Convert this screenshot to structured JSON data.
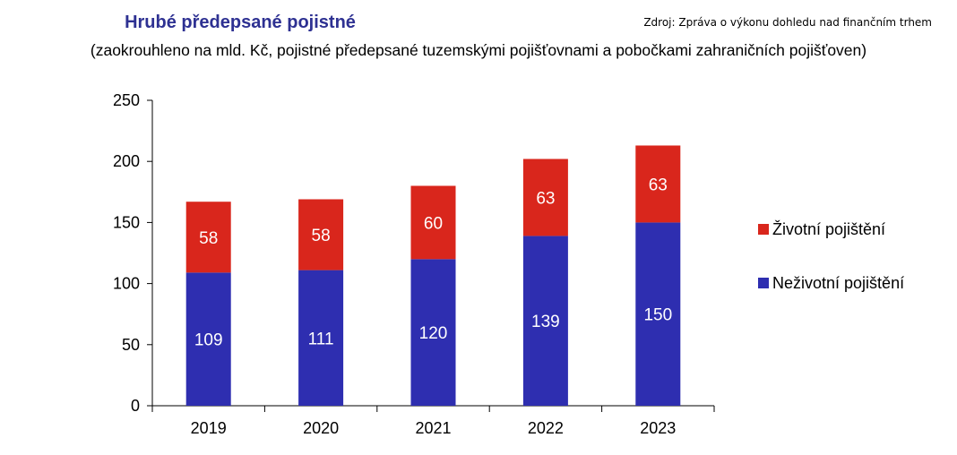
{
  "header": {
    "title": "Hrubé předepsané pojistné",
    "subtitle": "(zaokrouhleno na mld. Kč, pojistné předepsané tuzemskými pojišťovnami a pobočkami zahraničních pojišťoven)",
    "source": "Zdroj: Zpráva o výkonu dohledu nad finančním trhem"
  },
  "chart_data": {
    "type": "bar",
    "stacked": true,
    "categories": [
      "2019",
      "2020",
      "2021",
      "2022",
      "2023"
    ],
    "series": [
      {
        "name": "Neživotní pojištění",
        "values": [
          109,
          111,
          120,
          139,
          150
        ],
        "color": "#2e2eb0"
      },
      {
        "name": "Životní pojištění",
        "values": [
          58,
          58,
          60,
          63,
          63
        ],
        "color": "#d9261c"
      }
    ],
    "yticks": [
      0,
      50,
      100,
      150,
      200,
      250
    ],
    "ylim": [
      0,
      250
    ],
    "title": "Hrubé předepsané pojistné",
    "xlabel": "",
    "ylabel": "",
    "legend_position": "right",
    "grid": false
  }
}
